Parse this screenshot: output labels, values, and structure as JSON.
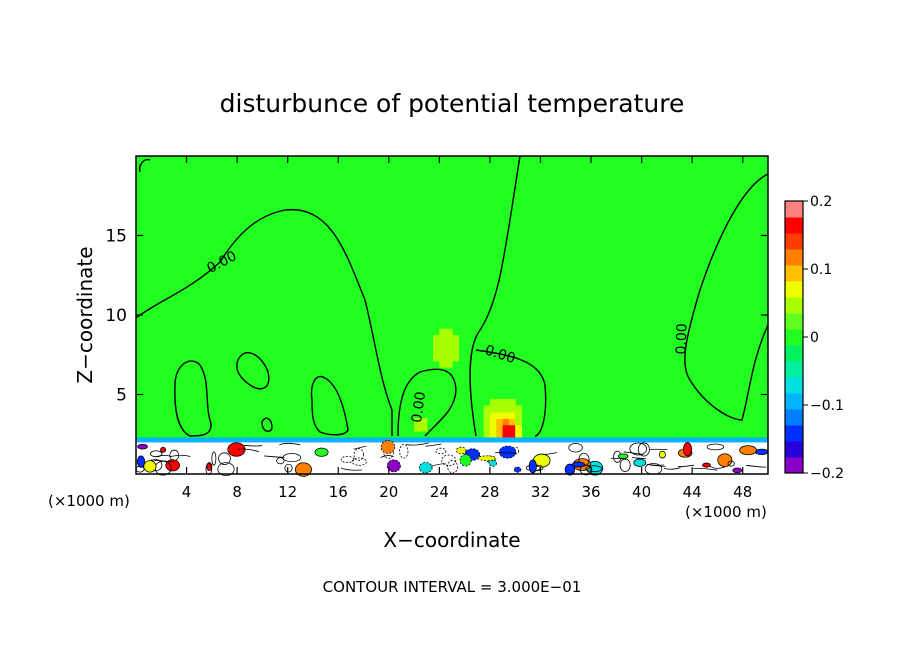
{
  "chart_data": {
    "type": "heatmap",
    "title": "disturbunce of potential temperature",
    "xlabel": "X−coordinate",
    "ylabel": "Z−coordinate",
    "x_unit_label": "(×1000 m)",
    "footer": "CONTOUR INTERVAL = 3.000E−01",
    "xlim": [
      0,
      50
    ],
    "ylim": [
      0,
      20
    ],
    "x_ticks": [
      4,
      8,
      12,
      16,
      20,
      24,
      28,
      32,
      36,
      40,
      44,
      48
    ],
    "y_ticks": [
      5,
      10,
      15
    ],
    "colorbar": {
      "range": [
        -0.2,
        0.2
      ],
      "tick_values": [
        0.2,
        0.1,
        0,
        -0.1,
        -0.2
      ],
      "tick_labels": [
        "0.2",
        "0.1",
        "0",
        "−0.1",
        "−0.2"
      ],
      "colors": [
        "#8a00c8",
        "#2a00d8",
        "#0030ff",
        "#0080ff",
        "#00b4ff",
        "#00e0e0",
        "#00f0a0",
        "#00f060",
        "#20ff20",
        "#60ff20",
        "#a8ff00",
        "#f0ff00",
        "#ffc000",
        "#ff8000",
        "#ff3c00",
        "#ff0000",
        "#ff8080"
      ]
    },
    "contour_labels": [
      {
        "text": "0.00",
        "x": 6.8,
        "y": 13.3,
        "angle": -28
      },
      {
        "text": "0.00",
        "x": 22.4,
        "y": 4.2,
        "angle": -82
      },
      {
        "text": "0.00",
        "x": 28.8,
        "y": 7.5,
        "angle": 18
      },
      {
        "text": "0.00",
        "x": 43.2,
        "y": 8.5,
        "angle": -88
      }
    ],
    "background_value": 0.02,
    "anomalies": [
      {
        "x": 24.5,
        "y": 8.0,
        "sx": 1.2,
        "sz": 1.6,
        "value": 0.05
      },
      {
        "x": 29.0,
        "y": 3.2,
        "sx": 1.4,
        "sz": 1.2,
        "value": 0.09
      },
      {
        "x": 29.5,
        "y": 2.6,
        "sx": 0.6,
        "sz": 0.6,
        "value": 0.15
      },
      {
        "x": 4.5,
        "y": 4.0,
        "sx": 1.0,
        "sz": 1.0,
        "value": 0.035
      },
      {
        "x": 17.5,
        "y": 4.5,
        "sx": 1.2,
        "sz": 1.2,
        "value": 0.035
      },
      {
        "x": 22.5,
        "y": 3.0,
        "sx": 0.8,
        "sz": 0.8,
        "value": 0.04
      },
      {
        "x": 16.0,
        "y": 3.0,
        "sx": 1.0,
        "sz": 0.6,
        "value": -0.01
      },
      {
        "x": 13.0,
        "y": 3.0,
        "sx": 0.8,
        "sz": 0.6,
        "value": -0.01
      },
      {
        "x": 3.0,
        "y": 3.0,
        "sx": 0.8,
        "sz": 0.6,
        "value": -0.01
      }
    ],
    "surface_layer": {
      "z_top": 2.3,
      "band_value": -0.09
    }
  }
}
